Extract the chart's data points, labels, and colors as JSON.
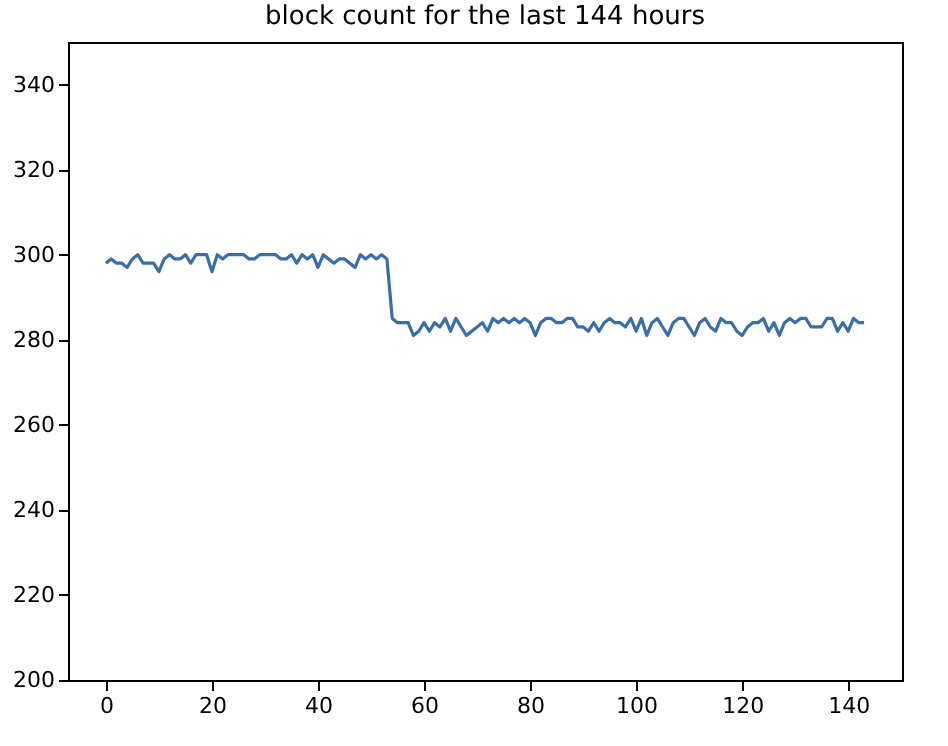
{
  "chart_data": {
    "type": "line",
    "title": "block count for the last 144 hours",
    "x": [
      0,
      1,
      2,
      3,
      4,
      5,
      6,
      7,
      8,
      9,
      10,
      11,
      12,
      13,
      14,
      15,
      16,
      17,
      18,
      19,
      20,
      21,
      22,
      23,
      24,
      25,
      26,
      27,
      28,
      29,
      30,
      31,
      32,
      33,
      34,
      35,
      36,
      37,
      38,
      39,
      40,
      41,
      42,
      43,
      44,
      45,
      46,
      47,
      48,
      49,
      50,
      51,
      52,
      53,
      54,
      55,
      56,
      57,
      58,
      59,
      60,
      61,
      62,
      63,
      64,
      65,
      66,
      67,
      68,
      69,
      70,
      71,
      72,
      73,
      74,
      75,
      76,
      77,
      78,
      79,
      80,
      81,
      82,
      83,
      84,
      85,
      86,
      87,
      88,
      89,
      90,
      91,
      92,
      93,
      94,
      95,
      96,
      97,
      98,
      99,
      100,
      101,
      102,
      103,
      104,
      105,
      106,
      107,
      108,
      109,
      110,
      111,
      112,
      113,
      114,
      115,
      116,
      117,
      118,
      119,
      120,
      121,
      122,
      123,
      124,
      125,
      126,
      127,
      128,
      129,
      130,
      131,
      132,
      133,
      134,
      135,
      136,
      137,
      138,
      139,
      140,
      141,
      142,
      143
    ],
    "series": [
      {
        "color": "#3a6ea5",
        "values": [
          298,
          299,
          298,
          298,
          297,
          299,
          300,
          298,
          298,
          298,
          296,
          299,
          300,
          299,
          299,
          300,
          298,
          300,
          300,
          300,
          296,
          300,
          299,
          300,
          300,
          300,
          300,
          299,
          299,
          300,
          300,
          300,
          300,
          299,
          299,
          300,
          298,
          300,
          299,
          300,
          297,
          300,
          299,
          298,
          299,
          299,
          298,
          297,
          300,
          299,
          300,
          299,
          300,
          299,
          285,
          284,
          284,
          284,
          281,
          282,
          284,
          282,
          284,
          283,
          285,
          282,
          285,
          283,
          281,
          282,
          283,
          284,
          282,
          285,
          284,
          285,
          284,
          285,
          284,
          285,
          284,
          281,
          284,
          285,
          285,
          284,
          284,
          285,
          285,
          283,
          283,
          282,
          284,
          282,
          284,
          285,
          284,
          284,
          283,
          285,
          282,
          285,
          281,
          284,
          285,
          283,
          281,
          284,
          285,
          285,
          283,
          281,
          284,
          285,
          283,
          282,
          285,
          284,
          284,
          282,
          281,
          283,
          284,
          284,
          285,
          282,
          284,
          281,
          284,
          285,
          284,
          285,
          285,
          283,
          283,
          283,
          285,
          285,
          282,
          284,
          282,
          285,
          284,
          284
        ]
      }
    ],
    "xlim": [
      -7.15,
      150.15
    ],
    "xticks": [
      0,
      20,
      40,
      60,
      80,
      100,
      120,
      140
    ],
    "ylim": [
      200,
      350
    ],
    "yticks": [
      200,
      220,
      240,
      260,
      280,
      300,
      320,
      340
    ]
  }
}
